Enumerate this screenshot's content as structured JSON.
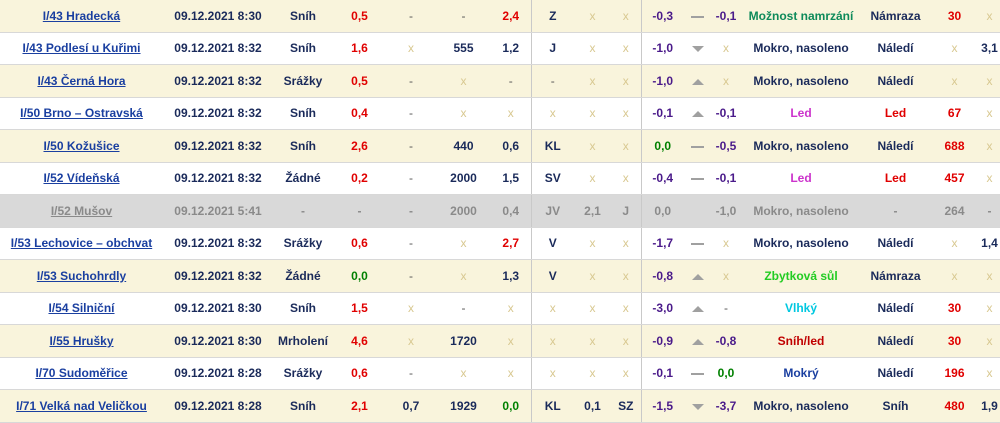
{
  "rows": [
    {
      "station": "I/43 Hradecká",
      "time": "09.12.2021 8:30",
      "precip": "Sníh",
      "air": "0,5",
      "c5": "-",
      "c6": "-",
      "c7": "2,4",
      "dir": "Z",
      "c9": "x",
      "c10": "x",
      "road": "-0,3",
      "trend": "flat",
      "c13": "-0,1",
      "state": "Možnost namrzání",
      "cond": "Námraza",
      "c16": "30",
      "c17": "x"
    },
    {
      "station": "I/43 Podlesí u Kuřimi",
      "time": "09.12.2021 8:32",
      "precip": "Sníh",
      "air": "1,6",
      "c5": "x",
      "c6": "555",
      "c7": "1,2",
      "dir": "J",
      "c9": "x",
      "c10": "x",
      "road": "-1,0",
      "trend": "down",
      "c13": "x",
      "state": "Mokro, nasoleno",
      "cond": "Náledí",
      "c16": "x",
      "c17": "3,1"
    },
    {
      "station": "I/43 Černá Hora",
      "time": "09.12.2021 8:32",
      "precip": "Srážky",
      "air": "0,5",
      "c5": "-",
      "c6": "x",
      "c7": "-",
      "dir": "-",
      "c9": "x",
      "c10": "x",
      "road": "-1,0",
      "trend": "up",
      "c13": "x",
      "state": "Mokro, nasoleno",
      "cond": "Náledí",
      "c16": "x",
      "c17": "x"
    },
    {
      "station": "I/50 Brno – Ostravská",
      "time": "09.12.2021 8:32",
      "precip": "Sníh",
      "air": "0,4",
      "c5": "-",
      "c6": "x",
      "c7": "x",
      "dir": "x",
      "c9": "x",
      "c10": "x",
      "road": "-0,1",
      "trend": "up",
      "c13": "-0,1",
      "state": "Led",
      "cond": "Led",
      "c16": "67",
      "c17": "x"
    },
    {
      "station": "I/50 Kožušice",
      "time": "09.12.2021 8:32",
      "precip": "Sníh",
      "air": "2,6",
      "c5": "-",
      "c6": "440",
      "c7": "0,6",
      "dir": "KL",
      "c9": "x",
      "c10": "x",
      "road": "0,0",
      "trend": "flat",
      "c13": "-0,5",
      "state": "Mokro, nasoleno",
      "cond": "Náledí",
      "c16": "688",
      "c17": "x"
    },
    {
      "station": "I/52 Vídeňská",
      "time": "09.12.2021 8:32",
      "precip": "Žádné",
      "air": "0,2",
      "c5": "-",
      "c6": "2000",
      "c7": "1,5",
      "dir": "SV",
      "c9": "x",
      "c10": "x",
      "road": "-0,4",
      "trend": "flat",
      "c13": "-0,1",
      "state": "Led",
      "cond": "Led",
      "c16": "457",
      "c17": "x"
    },
    {
      "station": "I/52 Mušov",
      "time": "09.12.2021 5:41",
      "precip": "-",
      "air": "-",
      "c5": "-",
      "c6": "2000",
      "c7": "0,4",
      "dir": "JV",
      "c9": "2,1",
      "c10": "J",
      "road": "0,0",
      "trend": "",
      "c13": "-1,0",
      "state": "Mokro, nasoleno",
      "cond": "-",
      "c16": "264",
      "c17": "-"
    },
    {
      "station": "I/53 Lechovice – obchvat",
      "time": "09.12.2021 8:32",
      "precip": "Srážky",
      "air": "0,6",
      "c5": "-",
      "c6": "x",
      "c7": "2,7",
      "dir": "V",
      "c9": "x",
      "c10": "x",
      "road": "-1,7",
      "trend": "flat",
      "c13": "x",
      "state": "Mokro, nasoleno",
      "cond": "Náledí",
      "c16": "x",
      "c17": "1,4"
    },
    {
      "station": "I/53 Suchohrdly",
      "time": "09.12.2021 8:32",
      "precip": "Žádné",
      "air": "0,0",
      "c5": "-",
      "c6": "x",
      "c7": "1,3",
      "dir": "V",
      "c9": "x",
      "c10": "x",
      "road": "-0,8",
      "trend": "up",
      "c13": "x",
      "state": "Zbytková sůl",
      "cond": "Námraza",
      "c16": "x",
      "c17": "x"
    },
    {
      "station": "I/54 Silniční",
      "time": "09.12.2021 8:30",
      "precip": "Sníh",
      "air": "1,5",
      "c5": "x",
      "c6": "-",
      "c7": "x",
      "dir": "x",
      "c9": "x",
      "c10": "x",
      "road": "-3,0",
      "trend": "up",
      "c13": "-",
      "state": "Vlhký",
      "cond": "Náledí",
      "c16": "30",
      "c17": "x"
    },
    {
      "station": "I/55 Hrušky",
      "time": "09.12.2021 8:30",
      "precip": "Mrholení",
      "air": "4,6",
      "c5": "x",
      "c6": "1720",
      "c7": "x",
      "dir": "x",
      "c9": "x",
      "c10": "x",
      "road": "-0,9",
      "trend": "up",
      "c13": "-0,8",
      "state": "Sníh/led",
      "cond": "Náledí",
      "c16": "30",
      "c17": "x"
    },
    {
      "station": "I/70 Sudoměřice",
      "time": "09.12.2021 8:28",
      "precip": "Srážky",
      "air": "0,6",
      "c5": "-",
      "c6": "x",
      "c7": "x",
      "dir": "x",
      "c9": "x",
      "c10": "x",
      "road": "-0,1",
      "trend": "flat",
      "c13": "0,0",
      "state": "Mokrý",
      "cond": "Náledí",
      "c16": "196",
      "c17": "x"
    },
    {
      "station": "I/71 Velká nad Veličkou",
      "time": "09.12.2021 8:28",
      "precip": "Sníh",
      "air": "2,1",
      "c5": "0,7",
      "c6": "1929",
      "c7": "0,0",
      "dir": "KL",
      "c9": "0,1",
      "c10": "SZ",
      "road": "-1,5",
      "trend": "down",
      "c13": "-3,7",
      "state": "Mokro, nasoleno",
      "cond": "Sníh",
      "c16": "480",
      "c17": "1,9"
    }
  ],
  "colors": {
    "row_odd": "#f9f4dc",
    "row_even": "#ffffff",
    "row_gray": "#d9d9d9",
    "link": "#1a3fa0",
    "red": "#e00000",
    "green": "#008000",
    "purple": "#4a1a8a",
    "magenta": "#cc33cc",
    "lime": "#22cc22",
    "cyan": "#00c8e0",
    "teal": "#0d8a5a",
    "placeholder": "#d8c890"
  }
}
